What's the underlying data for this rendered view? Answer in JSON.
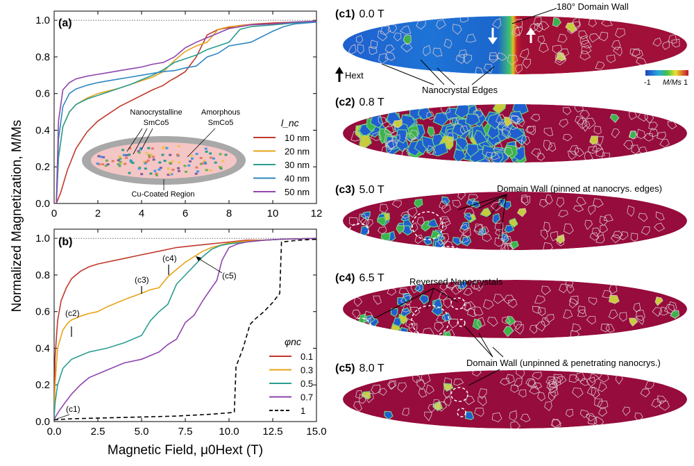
{
  "shared_ylabel": "Normalized Magnetization, M/Ms",
  "panel_a": {
    "label": "(a)",
    "legend_title": "l_nc",
    "inset": {
      "nano_label": [
        "Nanocrystalline",
        "SmCo5"
      ],
      "amorph_label": [
        "Amorphous",
        "SmCo5"
      ],
      "cu_label": "Cu-Coated Region"
    }
  },
  "panel_b": {
    "label": "(b)",
    "legend_title": "φnc",
    "xlabel": "Magnetic Field, μ0Hext (T)",
    "annotations": [
      "(c1)",
      "(c2)",
      "(c3)",
      "(c4)",
      "(c5)"
    ]
  },
  "chart_data": [
    {
      "id": "a",
      "type": "line",
      "xlim": [
        0,
        12
      ],
      "ylim": [
        0,
        1.05
      ],
      "xticks": [
        0,
        2,
        4,
        6,
        8,
        10,
        12
      ],
      "yticks": [
        0.0,
        0.2,
        0.4,
        0.6,
        0.8,
        1.0
      ],
      "reference_line": 1.0,
      "series": [
        {
          "name": "10 nm",
          "color": "#c0392b",
          "x": [
            0.1,
            0.3,
            0.6,
            1.0,
            1.5,
            2.0,
            2.5,
            3.0,
            3.5,
            4.0,
            4.5,
            5.0,
            5.3,
            5.6,
            6.0,
            6.5,
            7.0,
            7.5,
            8.0,
            8.4,
            8.8,
            9.2,
            10,
            11,
            12
          ],
          "y": [
            0.0,
            0.06,
            0.18,
            0.3,
            0.39,
            0.45,
            0.49,
            0.53,
            0.56,
            0.59,
            0.62,
            0.645,
            0.67,
            0.69,
            0.72,
            0.8,
            0.92,
            0.95,
            0.96,
            0.97,
            0.975,
            0.98,
            0.985,
            0.99,
            0.995
          ]
        },
        {
          "name": "20 nm",
          "color": "#e8a317",
          "x": [
            0.1,
            0.2,
            0.4,
            0.7,
            1.0,
            1.5,
            2.0,
            2.5,
            3.0,
            3.5,
            4.0,
            4.5,
            5.0,
            5.5,
            6.0,
            6.5,
            7.0,
            7.5,
            8.0,
            8.5,
            9,
            10,
            11,
            12
          ],
          "y": [
            0.0,
            0.25,
            0.42,
            0.5,
            0.54,
            0.575,
            0.6,
            0.615,
            0.63,
            0.65,
            0.67,
            0.69,
            0.72,
            0.78,
            0.83,
            0.86,
            0.88,
            0.95,
            0.965,
            0.97,
            0.975,
            0.98,
            0.99,
            0.995
          ]
        },
        {
          "name": "30 nm",
          "color": "#2a9d8f",
          "x": [
            0.1,
            0.2,
            0.4,
            0.7,
            1.0,
            1.5,
            2.0,
            2.5,
            3.0,
            3.5,
            4.0,
            4.5,
            5.0,
            5.5,
            6.0,
            6.5,
            7.0,
            7.5,
            8.0,
            8.5,
            9,
            10,
            11,
            12
          ],
          "y": [
            0.0,
            0.25,
            0.42,
            0.5,
            0.54,
            0.57,
            0.59,
            0.61,
            0.63,
            0.65,
            0.675,
            0.7,
            0.73,
            0.77,
            0.79,
            0.81,
            0.84,
            0.86,
            0.88,
            0.95,
            0.965,
            0.975,
            0.985,
            0.99
          ]
        },
        {
          "name": "40 nm",
          "color": "#2e86c1",
          "x": [
            0.1,
            0.2,
            0.4,
            0.7,
            1.0,
            1.5,
            2.0,
            2.5,
            3.0,
            3.5,
            4.0,
            4.5,
            5.0,
            5.5,
            6.0,
            6.5,
            7.0,
            7.5,
            8.0,
            9.0,
            9.5,
            10,
            10.5,
            11,
            12
          ],
          "y": [
            0.0,
            0.35,
            0.53,
            0.6,
            0.625,
            0.645,
            0.66,
            0.67,
            0.68,
            0.69,
            0.7,
            0.71,
            0.72,
            0.725,
            0.74,
            0.75,
            0.8,
            0.82,
            0.86,
            0.88,
            0.91,
            0.94,
            0.965,
            0.98,
            0.99
          ]
        },
        {
          "name": "50 nm",
          "color": "#8e44ad",
          "x": [
            0.1,
            0.2,
            0.4,
            0.7,
            1.0,
            1.5,
            2.0,
            2.5,
            3.0,
            3.5,
            4.0,
            4.5,
            5.0,
            5.5,
            6.0,
            6.5,
            7.0,
            7.5,
            8.0,
            8.5,
            9,
            10,
            11,
            12
          ],
          "y": [
            0.0,
            0.45,
            0.62,
            0.66,
            0.68,
            0.695,
            0.705,
            0.715,
            0.725,
            0.735,
            0.745,
            0.76,
            0.77,
            0.8,
            0.85,
            0.88,
            0.905,
            0.93,
            0.955,
            0.965,
            0.975,
            0.98,
            0.99,
            0.995
          ]
        }
      ]
    },
    {
      "id": "b",
      "type": "line",
      "xlim": [
        0,
        15
      ],
      "ylim": [
        0,
        1.05
      ],
      "xticks": [
        0.0,
        2.5,
        5.0,
        7.5,
        10.0,
        12.5,
        15.0
      ],
      "yticks": [
        0.0,
        0.2,
        0.4,
        0.6,
        0.8,
        1.0
      ],
      "reference_line": 1.0,
      "series": [
        {
          "name": "0.1",
          "color": "#c0392b",
          "dashed": false,
          "x": [
            0,
            0.05,
            0.2,
            0.4,
            0.7,
            1.0,
            1.5,
            2.0,
            2.5,
            3.0,
            3.5,
            4.0,
            5.0,
            6.0,
            7.0,
            8.0,
            9.0,
            10.0,
            11,
            12,
            13,
            15
          ],
          "y": [
            0.02,
            0.35,
            0.55,
            0.66,
            0.73,
            0.78,
            0.82,
            0.845,
            0.86,
            0.87,
            0.88,
            0.89,
            0.91,
            0.93,
            0.95,
            0.96,
            0.97,
            0.98,
            0.99,
            0.99,
            0.995,
            1.0
          ]
        },
        {
          "name": "0.3",
          "color": "#e8a317",
          "dashed": false,
          "x": [
            0,
            0.05,
            0.2,
            0.5,
            0.8,
            1.0,
            1.5,
            2.0,
            2.5,
            3.0,
            4.0,
            5.0,
            5.5,
            6.0,
            6.5,
            7.0,
            7.5,
            8.0,
            8.5,
            9.0,
            10,
            11,
            12,
            13,
            15
          ],
          "y": [
            0.02,
            0.2,
            0.4,
            0.5,
            0.54,
            0.555,
            0.575,
            0.59,
            0.6,
            0.625,
            0.665,
            0.7,
            0.72,
            0.73,
            0.79,
            0.83,
            0.87,
            0.9,
            0.93,
            0.95,
            0.975,
            0.985,
            0.99,
            0.995,
            1.0
          ]
        },
        {
          "name": "0.5",
          "color": "#2a9d8f",
          "dashed": false,
          "x": [
            0,
            0.05,
            0.2,
            0.5,
            1.0,
            1.5,
            2.0,
            2.5,
            3.0,
            4.0,
            5.0,
            5.5,
            6.0,
            6.5,
            7.0,
            7.5,
            8.0,
            8.5,
            9.0,
            9.5,
            10.0,
            11,
            12,
            13,
            15
          ],
          "y": [
            0.02,
            0.1,
            0.2,
            0.29,
            0.34,
            0.36,
            0.38,
            0.39,
            0.4,
            0.43,
            0.47,
            0.55,
            0.6,
            0.64,
            0.75,
            0.8,
            0.85,
            0.9,
            0.94,
            0.96,
            0.97,
            0.98,
            0.99,
            0.995,
            1.0
          ]
        },
        {
          "name": "0.7",
          "color": "#8e44ad",
          "dashed": false,
          "x": [
            0,
            0.1,
            0.3,
            0.6,
            1.0,
            1.5,
            2.0,
            3.0,
            4.0,
            5.0,
            6.0,
            6.5,
            7.0,
            7.5,
            8.0,
            8.5,
            9.0,
            9.3,
            9.6,
            10.0,
            10.5,
            11,
            12,
            13,
            15
          ],
          "y": [
            0.01,
            0.03,
            0.06,
            0.1,
            0.15,
            0.2,
            0.24,
            0.28,
            0.32,
            0.34,
            0.38,
            0.42,
            0.45,
            0.54,
            0.58,
            0.66,
            0.73,
            0.77,
            0.88,
            0.95,
            0.97,
            0.98,
            0.99,
            0.995,
            1.0
          ]
        },
        {
          "name": "1",
          "color": "#000000",
          "dashed": true,
          "x": [
            0,
            1.0,
            3.0,
            5.0,
            7.0,
            9.0,
            10.3,
            10.4,
            10.8,
            11.2,
            11.5,
            12.0,
            12.5,
            12.9,
            13.0,
            14,
            15
          ],
          "y": [
            0.01,
            0.015,
            0.02,
            0.025,
            0.03,
            0.04,
            0.05,
            0.3,
            0.4,
            0.53,
            0.56,
            0.6,
            0.65,
            0.7,
            0.98,
            0.99,
            0.995
          ]
        }
      ]
    }
  ],
  "sims": [
    {
      "label": "(c1)",
      "field": "0.0 T"
    },
    {
      "label": "(c2)",
      "field": "0.8 T"
    },
    {
      "label": "(c3)",
      "field": "5.0 T"
    },
    {
      "label": "(c4)",
      "field": "6.5 T"
    },
    {
      "label": "(c5)",
      "field": "8.0 T"
    }
  ],
  "sim_annotations": {
    "domain_wall_180": "180° Domain Wall",
    "nanocrystal_edges": "Nanocrystal Edges",
    "hext": "Hext",
    "colorbar_min": "-1",
    "colorbar_label": "M/Ms",
    "colorbar_max": "1",
    "pinned": "Domain Wall (pinned at nanocrys. edges)",
    "reversed": "Reversed Nanocrystals",
    "unpinned": "Domain Wall (unpinned & penetrating nanocrys.)"
  }
}
